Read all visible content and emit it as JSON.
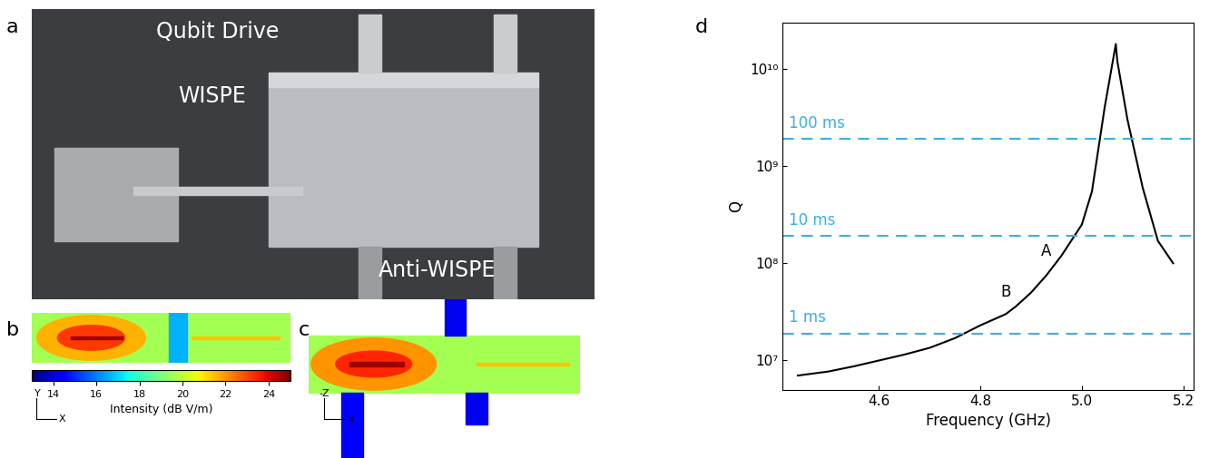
{
  "photo": {
    "label": "a",
    "texts": [
      "Qubit Drive",
      "WISPE",
      "Anti-WISPE"
    ]
  },
  "field_map_top": {
    "label": "b",
    "axis_labels": [
      "Y",
      "X"
    ]
  },
  "field_map_side": {
    "label": "c",
    "axis_labels": [
      "-Z",
      "x"
    ]
  },
  "colorbar": {
    "label": "Intensity (dB V/m)",
    "range": [
      13,
      25
    ],
    "ticks": [
      14,
      16,
      18,
      20,
      22,
      24
    ]
  },
  "chart_data": {
    "type": "line",
    "panel": "d",
    "x_label": "Frequency (GHz)",
    "y_label": "Q",
    "log": "y",
    "color": "#000000",
    "x": [
      4.44,
      4.5,
      4.55,
      4.6,
      4.65,
      4.7,
      4.75,
      4.8,
      4.85,
      4.87,
      4.9,
      4.93,
      4.96,
      5.0,
      5.02,
      5.045,
      5.067,
      5.07,
      5.09,
      5.12,
      5.15,
      5.18
    ],
    "values": [
      7000000,
      7700000,
      8700000,
      10000000,
      11500000,
      13500000,
      17000000,
      23000000,
      30000000,
      36000000,
      50000000,
      75000000,
      120000000,
      250000000,
      550000000,
      4000000000,
      18000000000,
      12000000000,
      3000000000,
      600000000,
      170000000,
      100000000
    ],
    "xlim": [
      4.41,
      5.22
    ],
    "xticks": [
      4.6,
      4.8,
      5.0,
      5.2
    ],
    "ylim": [
      5000000,
      30000000000
    ],
    "yticks": [
      {
        "value": 10000000,
        "label": "10⁷"
      },
      {
        "value": 100000000,
        "label": "10⁸"
      },
      {
        "value": 1000000000,
        "label": "10⁹"
      },
      {
        "value": 10000000000,
        "label": "10¹⁰"
      }
    ],
    "reference_lines": {
      "color": "#3ab0e0",
      "line_style": "dashed",
      "items": [
        {
          "label": "100 ms",
          "value": 1900000000
        },
        {
          "label": "10 ms",
          "value": 190000000
        },
        {
          "label": "1 ms",
          "value": 19000000
        }
      ]
    },
    "annotations": [
      {
        "text": "A",
        "x": 4.93,
        "y": 110000000
      },
      {
        "text": "B",
        "x": 4.85,
        "y": 42000000
      }
    ]
  }
}
